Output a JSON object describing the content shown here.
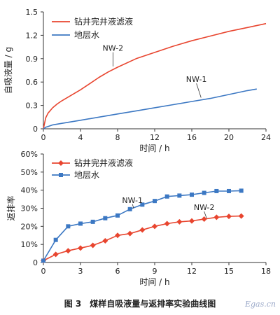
{
  "chart_data": [
    {
      "type": "line",
      "title": "",
      "xlabel": "时间 / h",
      "ylabel": "自吸液量 / g",
      "xlim": [
        0,
        24
      ],
      "ylim": [
        0,
        1.5
      ],
      "xticks": [
        "0",
        "4",
        "8",
        "12",
        "16",
        "20",
        "24"
      ],
      "yticks": [
        "0",
        "0.3",
        "0.6",
        "0.9",
        "1.2",
        "1.5"
      ],
      "legend_position": "top-left",
      "grid": false,
      "series": [
        {
          "name": "钻井完井液滤液",
          "color": "#e8452f",
          "marker": "none",
          "x": [
            0,
            0.25,
            0.5,
            1,
            1.5,
            2,
            3,
            4,
            5,
            6,
            7,
            8,
            10,
            12,
            14,
            16,
            18,
            20,
            22,
            24
          ],
          "y": [
            0,
            0.14,
            0.2,
            0.27,
            0.32,
            0.36,
            0.43,
            0.5,
            0.58,
            0.66,
            0.73,
            0.79,
            0.9,
            0.98,
            1.06,
            1.13,
            1.19,
            1.25,
            1.3,
            1.35
          ]
        },
        {
          "name": "地层水",
          "color": "#3c78c3",
          "marker": "none",
          "x": [
            0,
            0.25,
            0.5,
            1,
            2,
            4,
            6,
            8,
            10,
            12,
            14,
            16,
            18,
            20,
            22,
            23
          ],
          "y": [
            0,
            0.02,
            0.03,
            0.05,
            0.07,
            0.11,
            0.15,
            0.19,
            0.23,
            0.27,
            0.31,
            0.35,
            0.39,
            0.44,
            0.49,
            0.51
          ]
        }
      ],
      "annotations": [
        {
          "text": "NW-2",
          "x": 7.5,
          "y": 1.0,
          "target_x": 7.5,
          "target_y": 0.8
        },
        {
          "text": "NW-1",
          "x": 16.5,
          "y": 0.6,
          "target_x": 17,
          "target_y": 0.4
        }
      ]
    },
    {
      "type": "line",
      "title": "",
      "xlabel": "时间 / h",
      "ylabel": "返排率",
      "xlim": [
        0,
        18
      ],
      "ylim": [
        0,
        60
      ],
      "xticks": [
        "0",
        "3",
        "6",
        "9",
        "12",
        "15",
        "18"
      ],
      "yticks": [
        "0",
        "10%",
        "20%",
        "30%",
        "40%",
        "50%",
        "60%"
      ],
      "legend_position": "top-left",
      "grid": false,
      "series": [
        {
          "name": "钻井完井液滤液",
          "color": "#e8452f",
          "marker": "diamond",
          "x": [
            0,
            1,
            2,
            3,
            4,
            5,
            6,
            7,
            8,
            9,
            10,
            11,
            12,
            13,
            14,
            15,
            16
          ],
          "y": [
            1,
            4.5,
            6.5,
            8,
            9.5,
            12,
            15,
            16,
            18,
            20,
            21.5,
            22.5,
            23,
            24,
            25,
            25.5,
            25.7
          ]
        },
        {
          "name": "地层水",
          "color": "#3c78c3",
          "marker": "square",
          "x": [
            0,
            1,
            2,
            3,
            4,
            5,
            6,
            7,
            8,
            9,
            10,
            11,
            12,
            13,
            14,
            15,
            16
          ],
          "y": [
            1,
            12.5,
            20,
            21.5,
            22.5,
            24.5,
            26,
            29.5,
            32,
            34,
            36.5,
            37,
            37.5,
            38.5,
            39.5,
            39.5,
            39.7
          ]
        }
      ],
      "annotations": [
        {
          "text": "NW-1",
          "x": 7.2,
          "y": 33,
          "target_x": 7.3,
          "target_y": 30
        },
        {
          "text": "NW-2",
          "x": 13,
          "y": 29,
          "target_x": 13.2,
          "target_y": 24.5
        }
      ]
    }
  ],
  "caption": "图 3　煤样自吸液量与返排率实验曲线图",
  "watermark": "Egas.cn"
}
